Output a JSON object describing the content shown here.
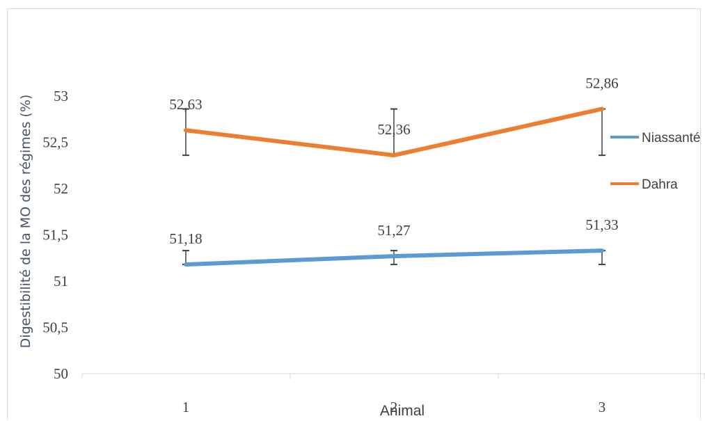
{
  "chart_data": {
    "type": "line",
    "xlabel": "Animal",
    "ylabel": "Digestibilité de la MO des régimes (%)",
    "categories": [
      "1",
      "2",
      "3"
    ],
    "ylim": [
      50,
      53
    ],
    "yticks": [
      "50",
      "50,5",
      "51",
      "51,5",
      "52",
      "52,5",
      "53"
    ],
    "ytick_values": [
      50,
      50.5,
      51,
      51.5,
      52,
      52.5,
      53
    ],
    "legend_position": "right",
    "grid": false,
    "series": [
      {
        "name": "Niassanté",
        "color": "#5b9bd5",
        "values": [
          51.18,
          51.27,
          51.33
        ],
        "labels": [
          "51,18",
          "51,27",
          "51,33"
        ],
        "error_low": [
          51.18,
          51.18,
          51.18
        ],
        "error_high": [
          51.33,
          51.33,
          51.33
        ]
      },
      {
        "name": "Dahra",
        "color": "#ed7d31",
        "values": [
          52.63,
          52.36,
          52.86
        ],
        "labels": [
          "52,63",
          "52,36",
          "52,86"
        ],
        "error_low": [
          52.36,
          52.36,
          52.36
        ],
        "error_high": [
          52.86,
          52.86,
          52.86
        ]
      }
    ]
  }
}
